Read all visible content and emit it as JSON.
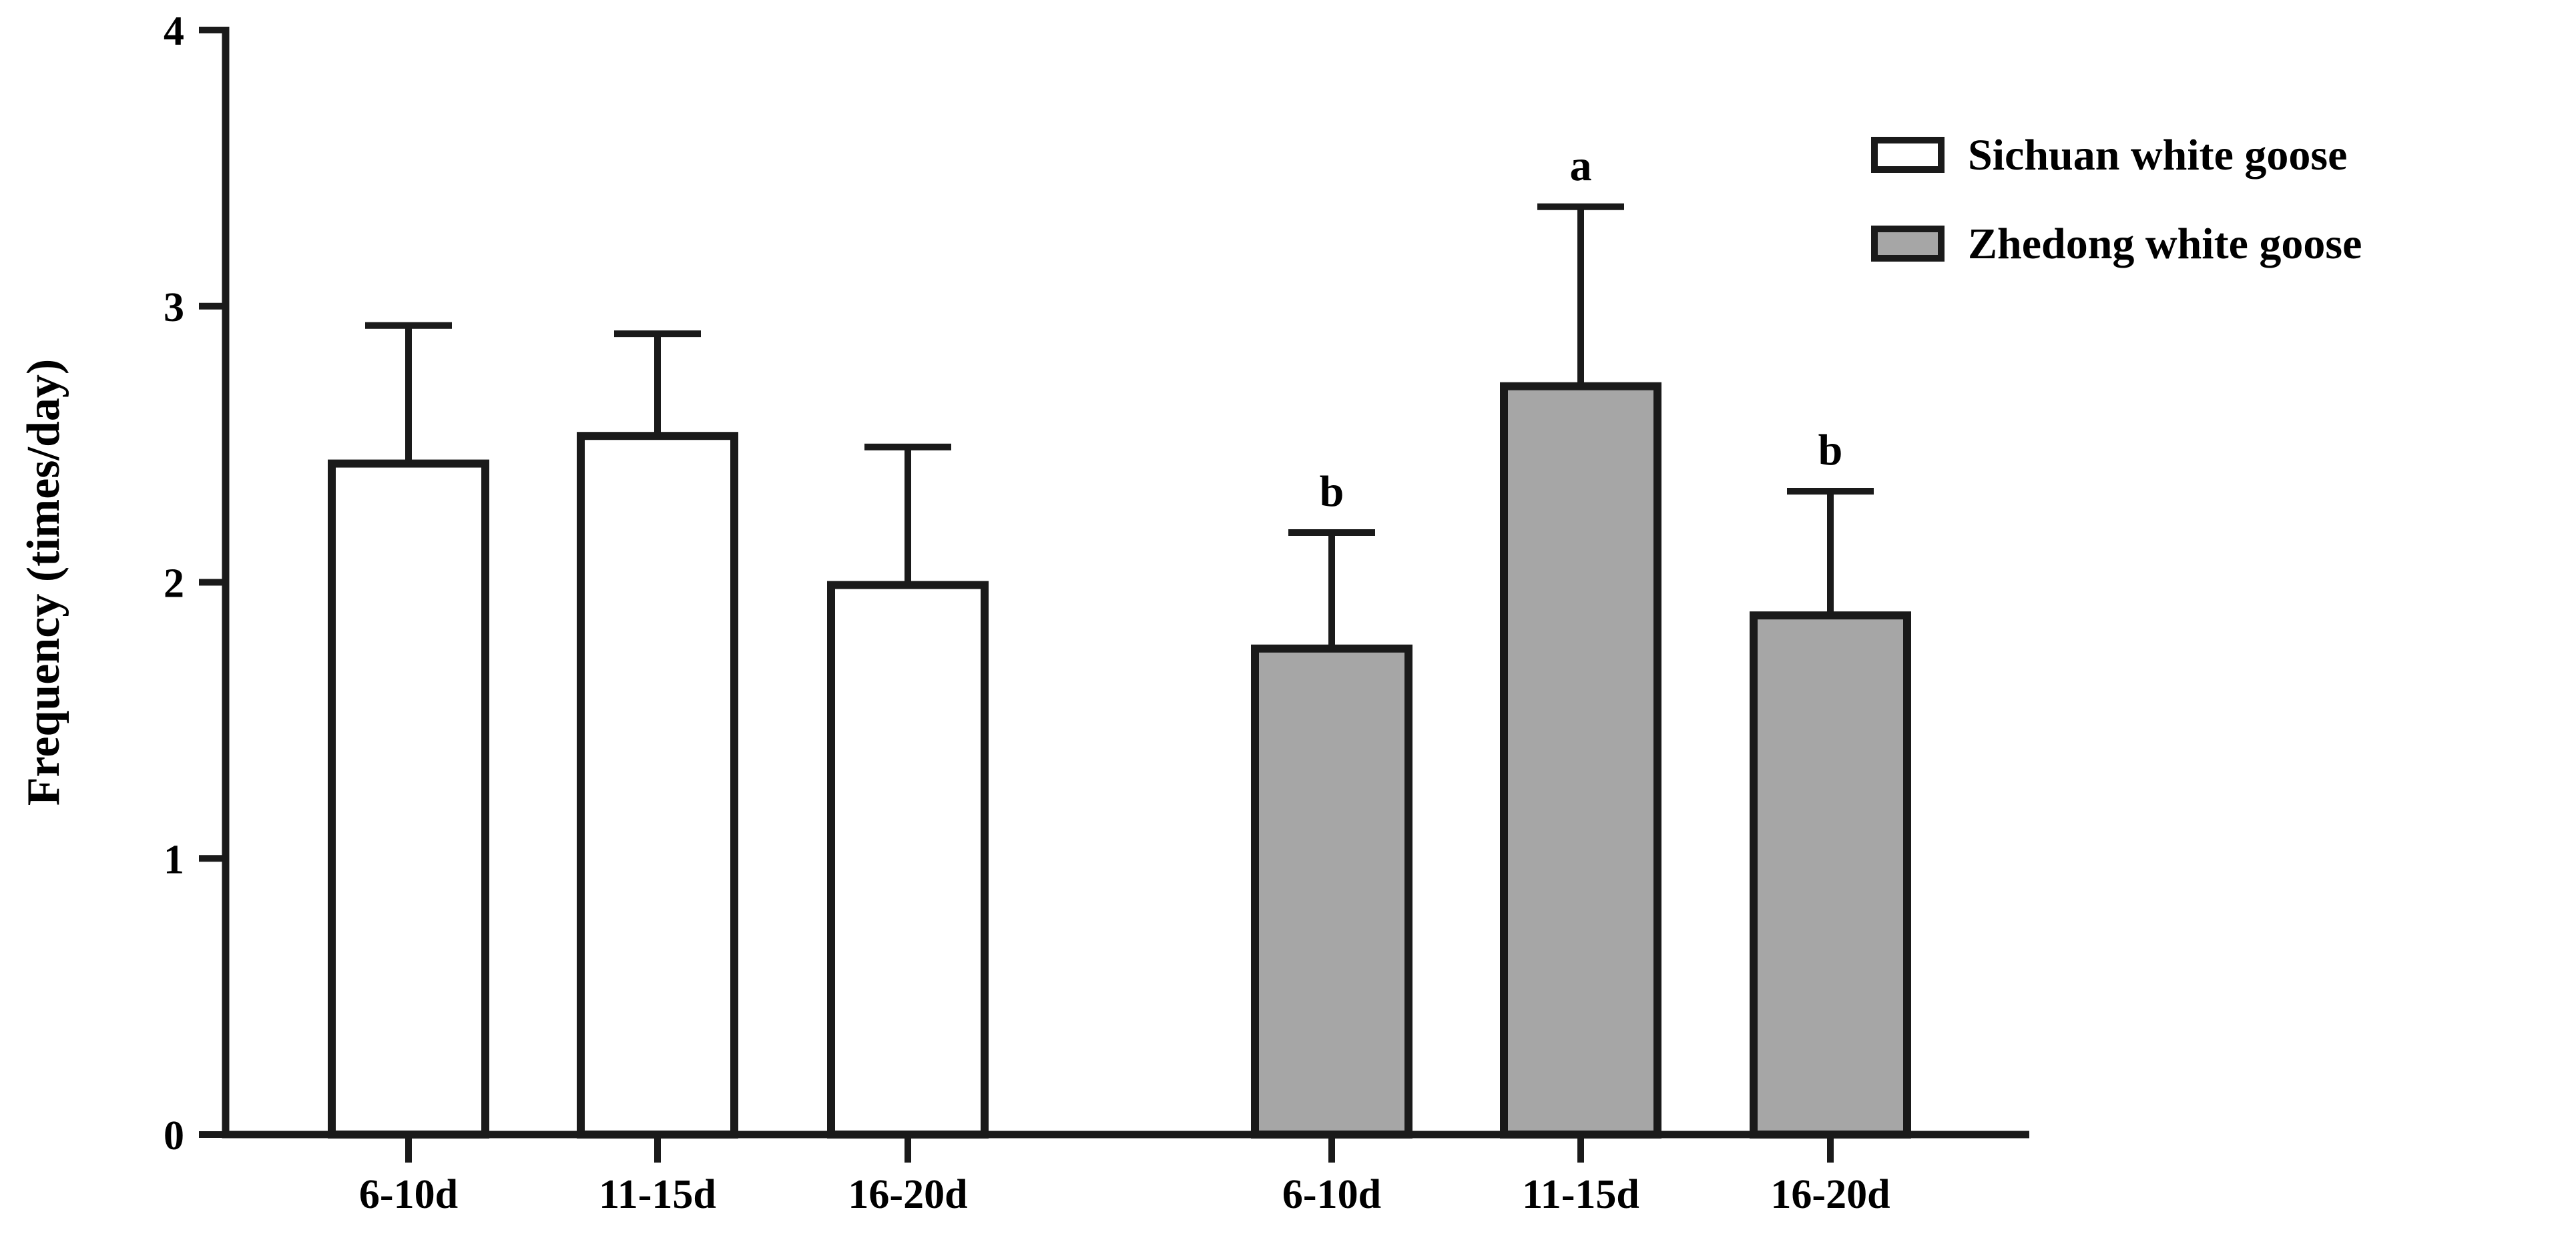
{
  "chart_data": {
    "type": "bar",
    "title": "",
    "xlabel": "",
    "ylabel": "Frequency (times/day)",
    "ylim": [
      0,
      4
    ],
    "yticks": [
      "0",
      "1",
      "2",
      "3",
      "4"
    ],
    "grid": false,
    "legend_position": "top-right",
    "series": [
      {
        "name": "Sichuan white goose",
        "fill": "#ffffff",
        "categories": [
          "6-10d",
          "11-15d",
          "16-20d"
        ],
        "values": [
          2.43,
          2.53,
          1.99
        ],
        "errors": [
          0.5,
          0.37,
          0.5
        ],
        "significance": [
          "",
          "",
          ""
        ]
      },
      {
        "name": "Zhedong white goose",
        "fill": "#a6a6a6",
        "categories": [
          "6-10d",
          "11-15d",
          "16-20d"
        ],
        "values": [
          1.76,
          2.71,
          1.88
        ],
        "errors": [
          0.42,
          0.65,
          0.45
        ],
        "significance": [
          "b",
          "a",
          "b"
        ]
      }
    ]
  }
}
